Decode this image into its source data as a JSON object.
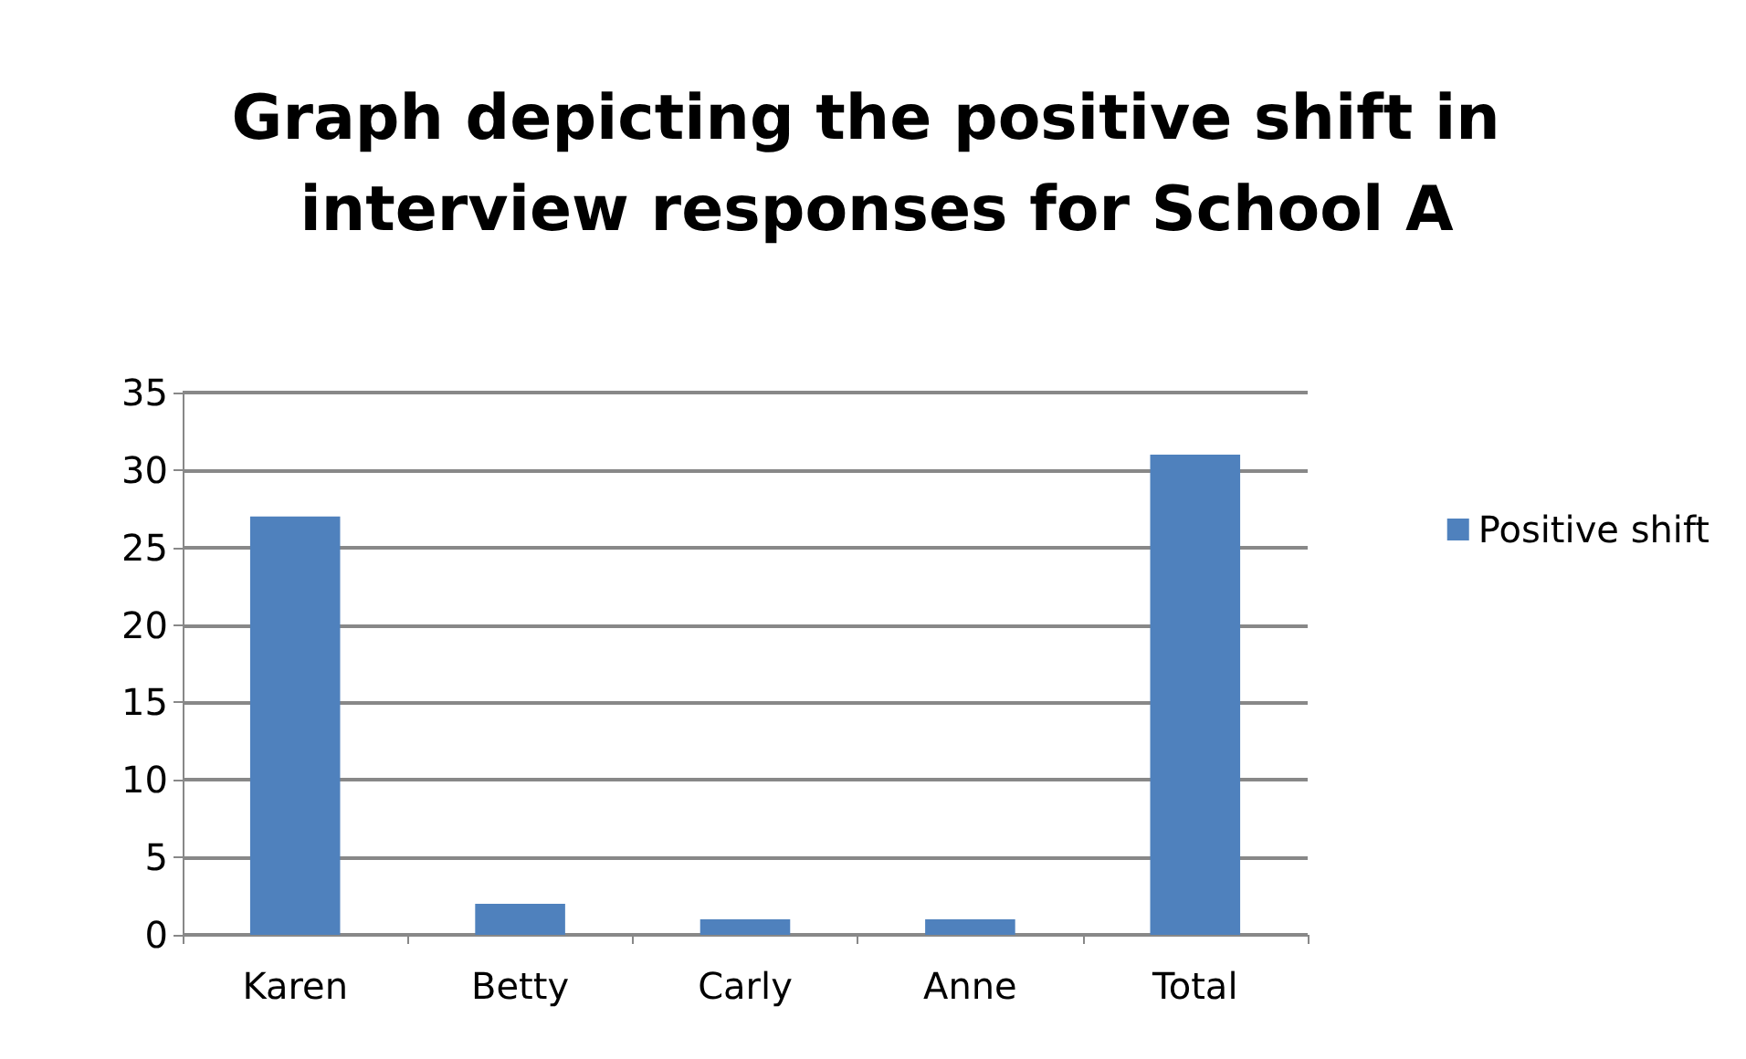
{
  "chart_data": {
    "type": "bar",
    "title": "Graph depicting the positive shift in interview responses for School A",
    "categories": [
      "Karen",
      "Betty",
      "Carly",
      "Anne",
      "Total"
    ],
    "series": [
      {
        "name": "Positive shift",
        "color": "#4f81bd",
        "values": [
          27,
          2,
          1,
          1,
          31
        ]
      }
    ],
    "ylim": [
      0,
      35
    ],
    "yticks": [
      0,
      5,
      10,
      15,
      20,
      25,
      30,
      35
    ],
    "grid": "y",
    "legend": "right"
  }
}
